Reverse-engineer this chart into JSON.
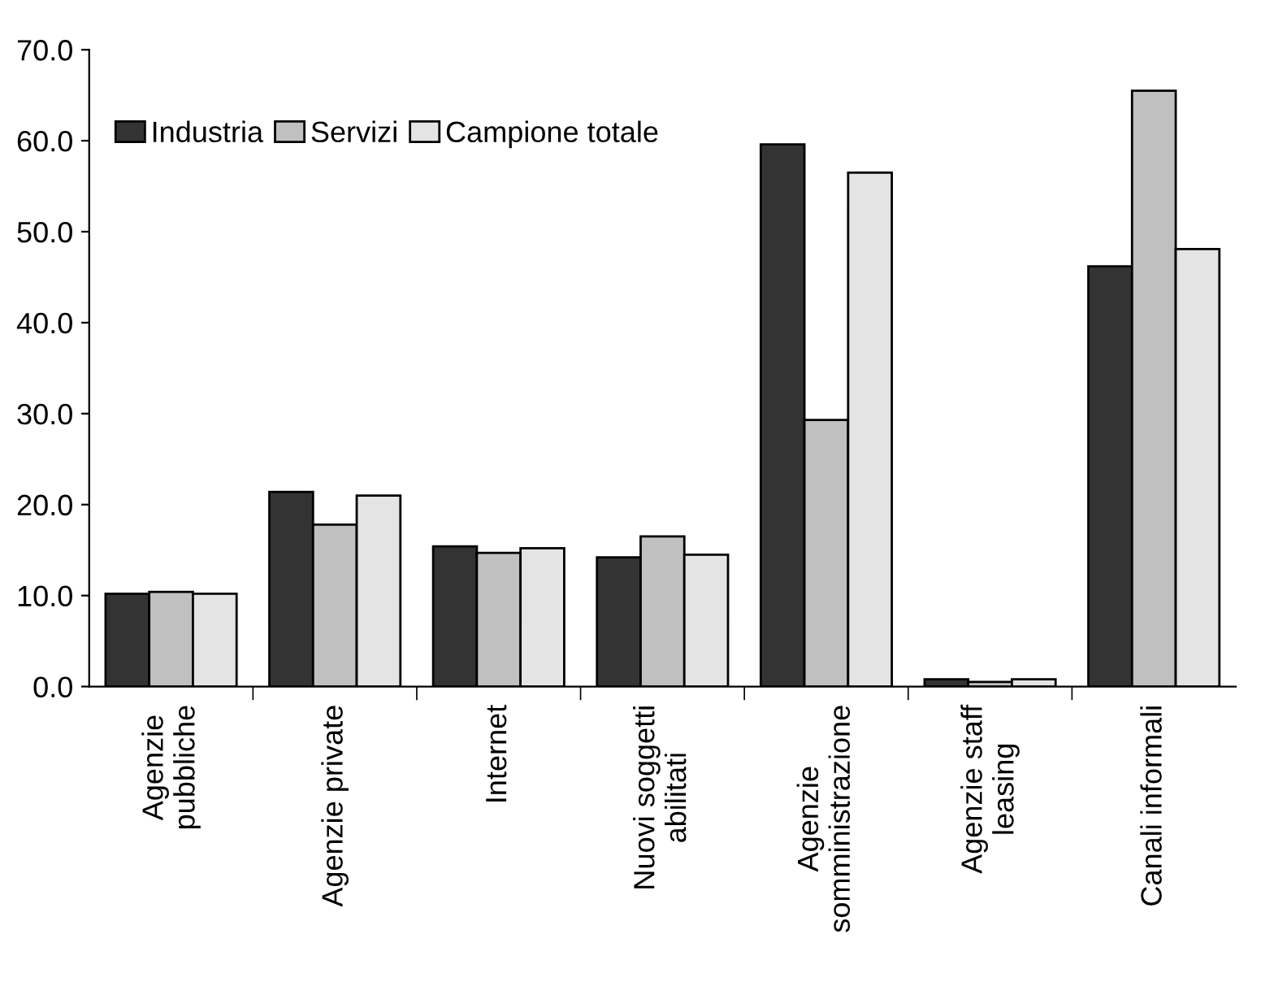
{
  "chart_data": {
    "type": "bar",
    "categories": [
      "Agenzie\npubbliche",
      "Agenzie private",
      "Internet",
      "Nuovi soggetti\nabilitati",
      "Agenzie\nsomministrazione",
      "Agenzie staff\nleasing",
      "Canali informali"
    ],
    "series": [
      {
        "name": "Industria",
        "color": "#333333",
        "values": [
          10.2,
          21.4,
          15.4,
          14.2,
          59.6,
          0.8,
          46.2
        ]
      },
      {
        "name": "Servizi",
        "color": "#c0c0c0",
        "values": [
          10.4,
          17.8,
          14.7,
          16.5,
          29.3,
          0.5,
          65.5
        ]
      },
      {
        "name": "Campione totale",
        "color": "#e4e4e4",
        "values": [
          10.2,
          21.0,
          15.2,
          14.5,
          56.5,
          0.8,
          48.1
        ]
      }
    ],
    "ylim": [
      0,
      70
    ],
    "yticks": [
      {
        "value": 0,
        "label": "0.0"
      },
      {
        "value": 10,
        "label": "10.0"
      },
      {
        "value": 20,
        "label": "20.0"
      },
      {
        "value": 30,
        "label": "30.0"
      },
      {
        "value": 40,
        "label": "40.0"
      },
      {
        "value": 50,
        "label": "50.0"
      },
      {
        "value": 60,
        "label": "60.0"
      },
      {
        "value": 70,
        "label": "70.0"
      }
    ],
    "grid": false,
    "legend": "top left"
  }
}
